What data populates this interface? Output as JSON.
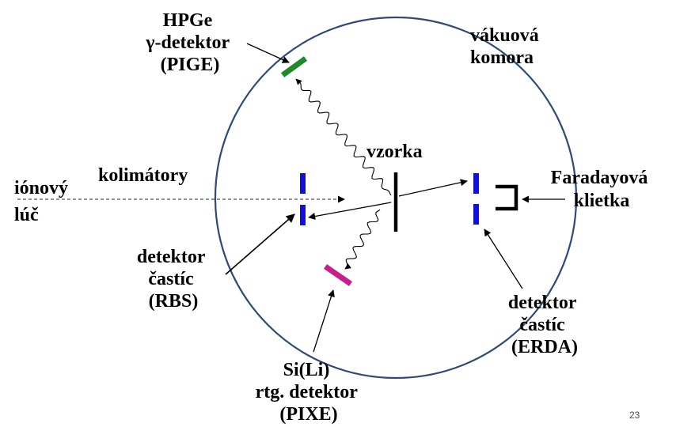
{
  "labels": {
    "hpge": [
      "HPGe",
      "γ-detektor",
      "(PIGE)"
    ],
    "chamber": [
      "vákuová",
      "komora"
    ],
    "sample": "vzorka",
    "collimators": "kolimátory",
    "beam": [
      "iónový",
      "lúč"
    ],
    "faraday": [
      "Faradayová",
      "klietka"
    ],
    "rbs": [
      "detektor",
      "častíc",
      "(RBS)"
    ],
    "erda": [
      "detektor",
      "častíc",
      "(ERDA)"
    ],
    "pixe": [
      "Si(Li)",
      "rtg. detektor",
      "(PIXE)"
    ]
  },
  "page_number": "23",
  "colors": {
    "chamber_outline": "#2f4a7a",
    "gamma_detector": "#1f8a2a",
    "collimator": "#1010d8",
    "xray_detector": "#c81e8c",
    "ink": "#000000"
  }
}
